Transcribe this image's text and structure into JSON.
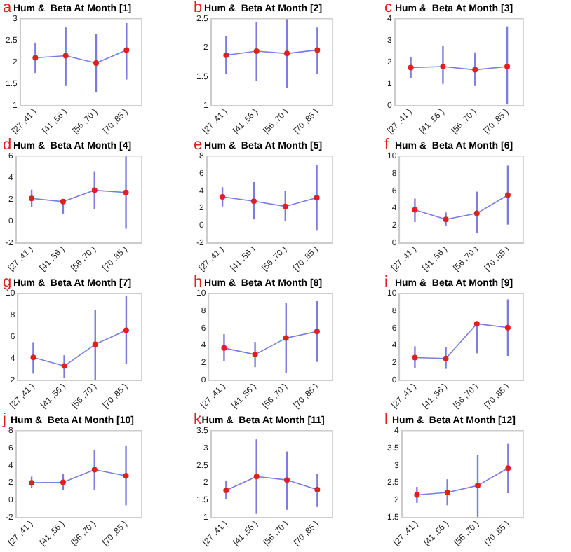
{
  "chart_data": [
    {
      "type": "line",
      "title": "Hum &  Beta At Month [1]",
      "annotations": [
        "a"
      ],
      "categories": [
        "[27 ,41 )",
        "[41 ,56 )",
        "[56 ,70 )",
        "[70 ,85 )"
      ],
      "series": [
        {
          "color": "#7b7be0",
          "colors": [
            "#e02020",
            "#e02020",
            "#e02020",
            "#e02020"
          ],
          "values": [
            2.1,
            2.15,
            1.98,
            2.28
          ],
          "errors": [
            [
              1.75,
              2.45
            ],
            [
              1.45,
              2.8
            ],
            [
              1.3,
              2.65
            ],
            [
              1.6,
              2.9
            ]
          ]
        }
      ],
      "ylim": [
        1,
        3
      ],
      "yticks": [
        1,
        1.5,
        2,
        2.5,
        3
      ],
      "marker": "circle",
      "grid": false,
      "legend": false
    },
    {
      "type": "line",
      "title": "Hum &  Beta At Month [2]",
      "annotations": [
        "b"
      ],
      "categories": [
        "[27 ,41 )",
        "[41 ,56 )",
        "[56 ,70 )",
        "[70 ,85 )"
      ],
      "series": [
        {
          "color": "#7b7be0",
          "colors": [
            "#e02020",
            "#e02020",
            "#e02020",
            "#e02020"
          ],
          "values": [
            1.87,
            1.94,
            1.9,
            1.96
          ],
          "errors": [
            [
              1.55,
              2.2
            ],
            [
              1.42,
              2.45
            ],
            [
              1.3,
              2.5
            ],
            [
              1.55,
              2.35
            ]
          ]
        }
      ],
      "ylim": [
        1,
        2.5
      ],
      "yticks": [
        1,
        1.5,
        2,
        2.5
      ],
      "marker": "circle",
      "grid": false,
      "legend": false
    },
    {
      "type": "line",
      "title": "Hum &  Beta At Month [3]",
      "annotations": [
        "c"
      ],
      "categories": [
        "[27 ,41 )",
        "[41 ,56 )",
        "[56 ,70 )",
        "[70 ,85 )"
      ],
      "series": [
        {
          "color": "#7b7be0",
          "colors": [
            "#e02020",
            "#e02020",
            "#e02020",
            "#e02020"
          ],
          "values": [
            1.75,
            1.8,
            1.65,
            1.8
          ],
          "errors": [
            [
              1.25,
              2.25
            ],
            [
              1.0,
              2.75
            ],
            [
              0.9,
              2.45
            ],
            [
              0.05,
              3.65
            ]
          ]
        }
      ],
      "ylim": [
        0,
        4
      ],
      "yticks": [
        0,
        1,
        2,
        3,
        4
      ],
      "marker": "circle",
      "grid": false,
      "legend": false
    },
    {
      "type": "line",
      "title": "Hum &  Beta At Month [4]",
      "annotations": [
        "d"
      ],
      "categories": [
        "[27 ,41 )",
        "[41 ,56 )",
        "[56 ,70 )",
        "[70 ,85 )"
      ],
      "series": [
        {
          "color": "#7b7be0",
          "colors": [
            "#e02020",
            "#e02020",
            "#e02020",
            "#e02020"
          ],
          "values": [
            2.1,
            1.8,
            2.85,
            2.65
          ],
          "errors": [
            [
              1.3,
              2.9
            ],
            [
              0.7,
              1.8
            ],
            [
              1.1,
              4.6
            ],
            [
              -0.7,
              6
            ]
          ]
        }
      ],
      "ylim": [
        -2,
        6
      ],
      "yticks": [
        -2,
        0,
        2,
        4,
        6
      ],
      "marker": "circle",
      "grid": false,
      "legend": false
    },
    {
      "type": "line",
      "title": "Hum &  Beta At Month [5]",
      "annotations": [
        "e"
      ],
      "categories": [
        "[27 ,41 )",
        "[41 ,56 )",
        "[56 ,70 )",
        "[70 ,85 )"
      ],
      "series": [
        {
          "color": "#7b7be0",
          "colors": [
            "#e02020",
            "#e02020",
            "#e02020",
            "#e02020"
          ],
          "values": [
            3.3,
            2.8,
            2.2,
            3.2
          ],
          "errors": [
            [
              2.2,
              4.4
            ],
            [
              0.7,
              5.0
            ],
            [
              0.5,
              4.0
            ],
            [
              -0.6,
              7.0
            ]
          ]
        }
      ],
      "ylim": [
        -2,
        8
      ],
      "yticks": [
        -2,
        0,
        2,
        4,
        6,
        8
      ],
      "marker": "circle",
      "grid": false,
      "legend": false
    },
    {
      "type": "line",
      "title": "Hum &  Beta At Month [6]",
      "annotations": [
        "f"
      ],
      "categories": [
        "[27 ,41 )",
        "[41 ,56 )",
        "[56 ,70 )",
        "[70 ,85 )"
      ],
      "series": [
        {
          "color": "#7b7be0",
          "colors": [
            "#e02020",
            "#e02020",
            "#e02020",
            "#e02020"
          ],
          "values": [
            3.8,
            2.7,
            3.4,
            5.5
          ],
          "errors": [
            [
              2.4,
              5.1
            ],
            [
              2.0,
              3.5
            ],
            [
              1.1,
              5.9
            ],
            [
              2.1,
              8.9
            ]
          ]
        }
      ],
      "ylim": [
        0,
        10
      ],
      "yticks": [
        0,
        2,
        4,
        6,
        8,
        10
      ],
      "marker": "circle",
      "grid": false,
      "legend": false
    },
    {
      "type": "line",
      "title": "Hum &  Beta At Month [7]",
      "annotations": [
        "g"
      ],
      "categories": [
        "[27 ,41 )",
        "[41 ,56 )",
        "[56 ,70 )",
        "[70 ,85 )"
      ],
      "series": [
        {
          "color": "#7b7be0",
          "colors": [
            "#e02020",
            "#e02020",
            "#e02020",
            "#e02020"
          ],
          "values": [
            4.1,
            3.3,
            5.3,
            6.6
          ],
          "errors": [
            [
              2.6,
              5.5
            ],
            [
              2.2,
              4.3
            ],
            [
              2.0,
              8.5
            ],
            [
              3.5,
              9.8
            ]
          ]
        }
      ],
      "ylim": [
        2,
        10
      ],
      "yticks": [
        2,
        4,
        6,
        8,
        10
      ],
      "marker": "circle",
      "grid": false,
      "legend": false
    },
    {
      "type": "line",
      "title": "Hum &  Beta At Month [8]",
      "annotations": [
        "h"
      ],
      "categories": [
        "[27 ,41 )",
        "[41 ,56 )",
        "[56 ,70 )",
        "[70 ,85 )"
      ],
      "series": [
        {
          "color": "#7b7be0",
          "colors": [
            "#e02020",
            "#e02020",
            "#e02020",
            "#e02020"
          ],
          "values": [
            3.7,
            2.95,
            4.85,
            5.6
          ],
          "errors": [
            [
              2.2,
              5.3
            ],
            [
              1.5,
              4.4
            ],
            [
              0.8,
              8.9
            ],
            [
              2.1,
              9.1
            ]
          ]
        }
      ],
      "ylim": [
        0,
        10
      ],
      "yticks": [
        0,
        2,
        4,
        6,
        8,
        10
      ],
      "marker": "circle",
      "grid": false,
      "legend": false
    },
    {
      "type": "line",
      "title": "Hum &  Beta At Month [9]",
      "annotations": [
        "i"
      ],
      "categories": [
        "[27 ,41 )",
        "[41 ,56 )",
        "[56 ,70 )",
        "[70 ,85 )"
      ],
      "series": [
        {
          "color": "#7b7be0",
          "colors": [
            "#e02020",
            "#e02020",
            "#e02020",
            "#e02020"
          ],
          "values": [
            2.6,
            2.5,
            6.5,
            6.05
          ],
          "errors": [
            [
              1.4,
              3.9
            ],
            [
              1.3,
              3.8
            ],
            [
              3.1,
              6.6
            ],
            [
              2.8,
              9.3
            ]
          ]
        }
      ],
      "ylim": [
        0,
        10
      ],
      "yticks": [
        0,
        2,
        4,
        6,
        8,
        10
      ],
      "marker": "circle",
      "grid": false,
      "legend": false
    },
    {
      "type": "line",
      "title": "Hum &  Beta At Month [10]",
      "annotations": [
        "j"
      ],
      "categories": [
        "[27 ,41 )",
        "[41 ,56 )",
        "[56 ,70 )",
        "[70 ,85 )"
      ],
      "series": [
        {
          "color": "#7b7be0",
          "colors": [
            "#e02020",
            "#e02020",
            "#e02020",
            "#e02020"
          ],
          "values": [
            2.0,
            2.05,
            3.5,
            2.8
          ],
          "errors": [
            [
              1.4,
              2.7
            ],
            [
              1.2,
              3.0
            ],
            [
              1.2,
              5.8
            ],
            [
              -0.6,
              6.3
            ]
          ]
        }
      ],
      "ylim": [
        -2,
        8
      ],
      "yticks": [
        -2,
        0,
        2,
        4,
        6,
        8
      ],
      "marker": "circle",
      "grid": false,
      "legend": false
    },
    {
      "type": "line",
      "title": "Hum &  Beta At Month [11]",
      "annotations": [
        "k"
      ],
      "categories": [
        "[27 ,41 )",
        "[41 ,56 )",
        "[56 ,70 )",
        "[70 ,85 )"
      ],
      "series": [
        {
          "color": "#7b7be0",
          "colors": [
            "#e02020",
            "#e02020",
            "#e02020",
            "#e02020"
          ],
          "values": [
            1.78,
            2.18,
            2.08,
            1.8
          ],
          "errors": [
            [
              1.52,
              2.05
            ],
            [
              1.1,
              3.25
            ],
            [
              1.22,
              2.9
            ],
            [
              1.3,
              2.25
            ]
          ]
        }
      ],
      "ylim": [
        1,
        3.5
      ],
      "yticks": [
        1,
        1.5,
        2,
        2.5,
        3,
        3.5
      ],
      "marker": "circle",
      "grid": false,
      "legend": false
    },
    {
      "type": "line",
      "title": "Hum &  Beta At Month [12]",
      "annotations": [
        "l"
      ],
      "categories": [
        "[27 ,41 )",
        "[41 ,56 )",
        "[56 ,70 )",
        "[70 ,85 )"
      ],
      "series": [
        {
          "color": "#7b7be0",
          "colors": [
            "#e02020",
            "#e02020",
            "#e02020",
            "#e02020"
          ],
          "values": [
            2.15,
            2.22,
            2.42,
            2.92
          ],
          "errors": [
            [
              1.92,
              2.38
            ],
            [
              1.85,
              2.6
            ],
            [
              1.5,
              3.3
            ],
            [
              2.2,
              3.62
            ]
          ]
        }
      ],
      "ylim": [
        1.5,
        4
      ],
      "yticks": [
        1.5,
        2,
        2.5,
        3,
        3.5,
        4
      ],
      "marker": "circle",
      "grid": false,
      "legend": false
    }
  ]
}
